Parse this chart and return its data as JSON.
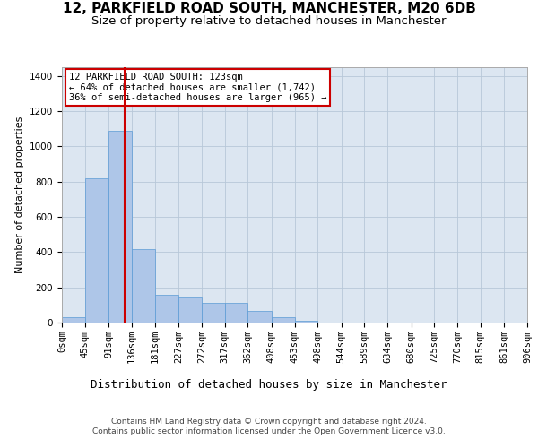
{
  "title1": "12, PARKFIELD ROAD SOUTH, MANCHESTER, M20 6DB",
  "title2": "Size of property relative to detached houses in Manchester",
  "xlabel": "Distribution of detached houses by size in Manchester",
  "ylabel": "Number of detached properties",
  "annotation_line1": "12 PARKFIELD ROAD SOUTH: 123sqm",
  "annotation_line2": "← 64% of detached houses are smaller (1,742)",
  "annotation_line3": "36% of semi-detached houses are larger (965) →",
  "property_size": 123,
  "bar_edges": [
    0,
    45,
    91,
    136,
    181,
    227,
    272,
    317,
    362,
    408,
    453,
    498,
    544,
    589,
    634,
    680,
    725,
    770,
    815,
    861,
    906
  ],
  "bar_heights": [
    30,
    820,
    1090,
    415,
    160,
    145,
    110,
    110,
    65,
    30,
    8,
    0,
    0,
    0,
    0,
    0,
    0,
    0,
    0,
    0
  ],
  "bar_color": "#aec6e8",
  "bar_edgecolor": "#5b9bd5",
  "vline_color": "#cc0000",
  "vline_x": 123,
  "annotation_box_edgecolor": "#cc0000",
  "annotation_box_facecolor": "#ffffff",
  "ylim": [
    0,
    1450
  ],
  "yticks": [
    0,
    200,
    400,
    600,
    800,
    1000,
    1200,
    1400
  ],
  "plot_bg_color": "#dce6f1",
  "footer1": "Contains HM Land Registry data © Crown copyright and database right 2024.",
  "footer2": "Contains public sector information licensed under the Open Government Licence v3.0.",
  "title1_fontsize": 11,
  "title2_fontsize": 9.5,
  "xlabel_fontsize": 9,
  "ylabel_fontsize": 8,
  "tick_fontsize": 7.5,
  "annot_fontsize": 7.5
}
